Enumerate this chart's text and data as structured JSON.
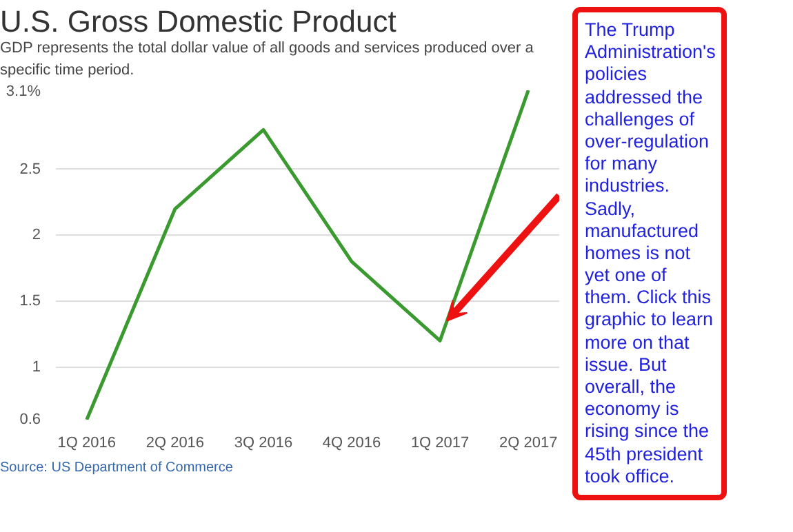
{
  "chart_data": {
    "type": "line",
    "title": "U.S. Gross Domestic Product",
    "subtitle": "GDP represents the total dollar value of all goods and services produced over a specific time period.",
    "categories": [
      "1Q 2016",
      "2Q 2016",
      "3Q 2016",
      "4Q 2016",
      "1Q 2017",
      "2Q 2017"
    ],
    "series": [
      {
        "color": "#3a9a2f",
        "values": [
          0.6,
          2.2,
          2.8,
          1.8,
          1.2,
          3.1
        ]
      }
    ],
    "ylim": [
      0.6,
      3.1
    ],
    "yticks": [
      0.6,
      1,
      1.5,
      2,
      2.5,
      {
        "value": 3.1,
        "label": "3.1%"
      }
    ],
    "grid": "y",
    "marker": "none",
    "line_style": "solid",
    "annotations": [
      "Source: US Department of Commerce",
      "The Trump Administration's policies addressed the challenges of over-regulation for many industries.  Sadly, manufactured homes is not yet one of them. Click this graphic to learn more on that issue. But overall, the economy is rising since the 45th president took office."
    ]
  }
}
